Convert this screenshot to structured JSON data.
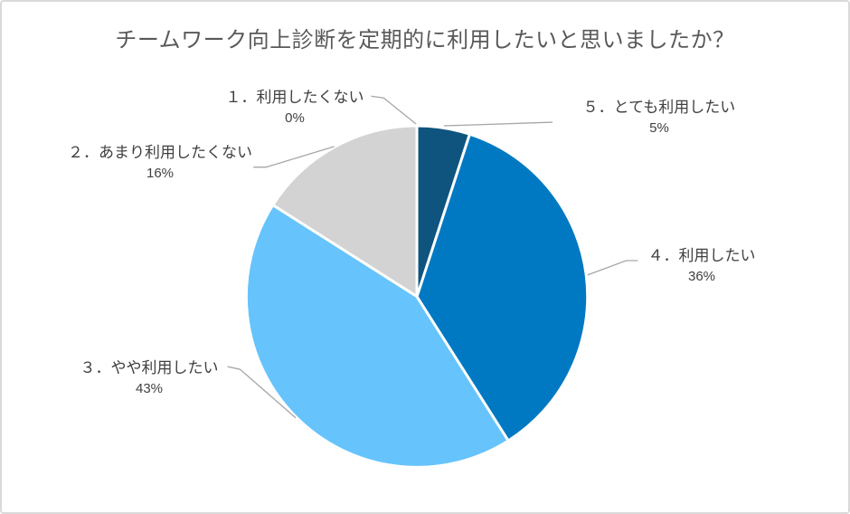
{
  "chart_data": {
    "type": "pie",
    "title": "チームワーク向上診断を定期的に利用したいと思いましたか？",
    "legend": "none",
    "data_labels": "outside-with-leader-lines",
    "start_angle_deg": 0,
    "direction": "counterclockwise-from-top",
    "slices": [
      {
        "label": "１．利用したくない",
        "value": 0,
        "pct_label": "0%",
        "color": null
      },
      {
        "label": "２．あまり利用したくない",
        "value": 16,
        "pct_label": "16%",
        "color": "#D3D3D3"
      },
      {
        "label": "３．やや利用したい",
        "value": 43,
        "pct_label": "43%",
        "color": "#66C3FC"
      },
      {
        "label": "４．利用したい",
        "value": 36,
        "pct_label": "36%",
        "color": "#0079C2"
      },
      {
        "label": "５．とても利用したい",
        "value": 5,
        "pct_label": "5%",
        "color": "#0E547E"
      }
    ],
    "colors": {
      "title_text": "#595959",
      "label_text": "#404040",
      "leader_line": "#A6A6A6",
      "slice_separator": "#FFFFFF",
      "page_border": "#D9D9D9",
      "background": "#FFFFFF"
    }
  }
}
